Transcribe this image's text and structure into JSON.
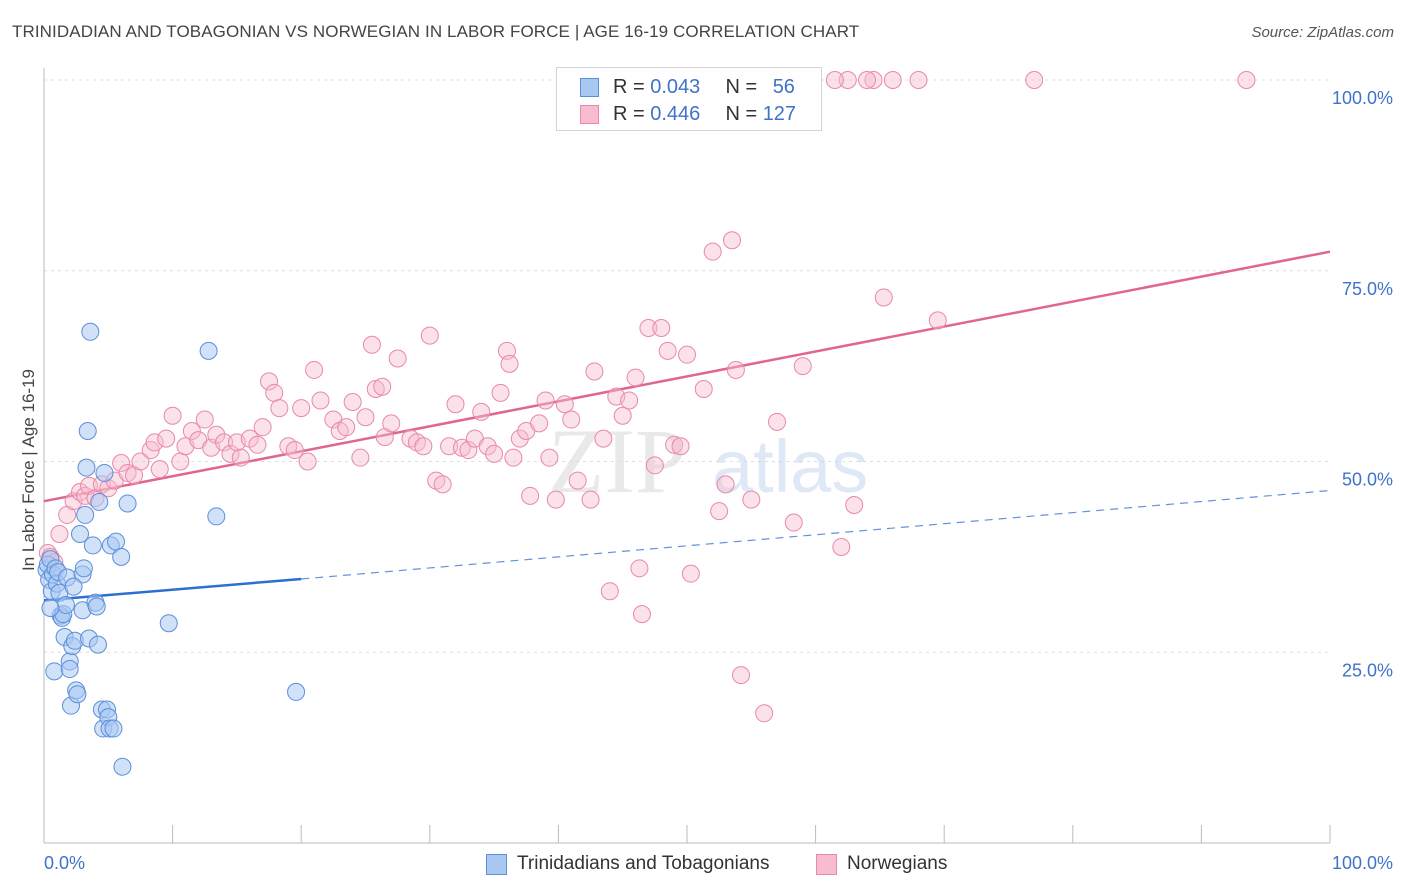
{
  "title": "TRINIDADIAN AND TOBAGONIAN VS NORWEGIAN IN LABOR FORCE | AGE 16-19 CORRELATION CHART",
  "source": "Source: ZipAtlas.com",
  "watermark": {
    "zip": "ZIP",
    "atlas": "atlas"
  },
  "colors": {
    "blue_fill": "#a9c8f2",
    "blue_stroke": "#5b8fdb",
    "blue_line": "#2d6fd0",
    "pink_fill": "#f7bcd0",
    "pink_stroke": "#e889a8",
    "pink_line": "#e0668f",
    "axis_text_blue": "#3f72c9",
    "grid": "#dddddd"
  },
  "legend": {
    "rows": [
      {
        "r_label": "R = ",
        "r_value": "0.043",
        "n_label": "N = ",
        "n_value": "56"
      },
      {
        "r_label": "R = ",
        "r_value": "0.446",
        "n_label": "N = ",
        "n_value": "127"
      }
    ]
  },
  "bottom_legend": {
    "series1": "Trinidadians and Tobagonians",
    "series2": "Norwegians"
  },
  "chart_data": {
    "type": "scatter",
    "title": "TRINIDADIAN AND TOBAGONIAN VS NORWEGIAN IN LABOR FORCE | AGE 16-19 CORRELATION CHART",
    "xlabel": "",
    "ylabel": "In Labor Force | Age 16-19",
    "xlim": [
      0,
      100
    ],
    "ylim": [
      0,
      100
    ],
    "x_tick_labels": [
      "0.0%",
      "100.0%"
    ],
    "y_tick_labels": [
      "25.0%",
      "50.0%",
      "75.0%",
      "100.0%"
    ],
    "y_ticks": [
      25,
      50,
      75,
      100
    ],
    "grid": true,
    "legend_position": "top-center",
    "series": [
      {
        "name": "Trinidadians and Tobagonians",
        "R": 0.043,
        "N": 56,
        "trend": {
          "x": [
            0,
            20
          ],
          "y": [
            31.8,
            34.6
          ],
          "dashed_to": [
            100,
            46.2
          ]
        },
        "points": [
          [
            0.2,
            35.8
          ],
          [
            0.3,
            36.5
          ],
          [
            0.4,
            34.5
          ],
          [
            0.5,
            37.2
          ],
          [
            0.6,
            33.0
          ],
          [
            0.7,
            35.2
          ],
          [
            0.8,
            22.5
          ],
          [
            0.9,
            36.0
          ],
          [
            1.0,
            34.0
          ],
          [
            1.1,
            35.5
          ],
          [
            1.2,
            32.8
          ],
          [
            1.3,
            29.8
          ],
          [
            1.4,
            29.5
          ],
          [
            1.5,
            30.0
          ],
          [
            1.6,
            27.0
          ],
          [
            1.8,
            34.8
          ],
          [
            2.0,
            23.8
          ],
          [
            2.0,
            22.8
          ],
          [
            2.1,
            18.0
          ],
          [
            2.2,
            25.8
          ],
          [
            2.4,
            26.5
          ],
          [
            2.5,
            20.0
          ],
          [
            2.6,
            19.5
          ],
          [
            2.8,
            40.5
          ],
          [
            3.0,
            30.5
          ],
          [
            3.0,
            35.2
          ],
          [
            3.1,
            36.0
          ],
          [
            3.2,
            43.0
          ],
          [
            3.3,
            49.2
          ],
          [
            3.4,
            54.0
          ],
          [
            3.5,
            26.8
          ],
          [
            3.6,
            67.0
          ],
          [
            3.8,
            39.0
          ],
          [
            4.0,
            31.5
          ],
          [
            4.1,
            31.0
          ],
          [
            4.2,
            26.0
          ],
          [
            4.3,
            44.7
          ],
          [
            4.5,
            17.5
          ],
          [
            4.6,
            15.0
          ],
          [
            4.7,
            48.5
          ],
          [
            4.9,
            17.5
          ],
          [
            5.0,
            16.5
          ],
          [
            5.1,
            15.0
          ],
          [
            5.2,
            39.0
          ],
          [
            5.4,
            15.0
          ],
          [
            5.6,
            39.5
          ],
          [
            6.0,
            37.5
          ],
          [
            6.1,
            10.0
          ],
          [
            6.5,
            44.5
          ],
          [
            9.7,
            28.8
          ],
          [
            12.8,
            64.5
          ],
          [
            13.4,
            42.8
          ],
          [
            19.6,
            19.8
          ],
          [
            1.7,
            31.2
          ],
          [
            2.3,
            33.6
          ],
          [
            0.5,
            30.8
          ]
        ]
      },
      {
        "name": "Norwegians",
        "R": 0.446,
        "N": 127,
        "trend": {
          "x": [
            0,
            100
          ],
          "y": [
            44.8,
            77.5
          ]
        },
        "points": [
          [
            0.3,
            38.0
          ],
          [
            0.5,
            37.5
          ],
          [
            0.8,
            36.8
          ],
          [
            1.2,
            40.5
          ],
          [
            1.8,
            43.0
          ],
          [
            2.3,
            44.8
          ],
          [
            2.8,
            46.0
          ],
          [
            3.2,
            45.5
          ],
          [
            3.5,
            46.8
          ],
          [
            4.0,
            45.2
          ],
          [
            4.5,
            47.0
          ],
          [
            5.0,
            46.5
          ],
          [
            5.5,
            47.5
          ],
          [
            6.0,
            49.8
          ],
          [
            6.5,
            48.5
          ],
          [
            7.0,
            48.2
          ],
          [
            7.5,
            50.0
          ],
          [
            8.3,
            51.5
          ],
          [
            8.6,
            52.5
          ],
          [
            9.0,
            49.0
          ],
          [
            9.5,
            53.0
          ],
          [
            10.0,
            56.0
          ],
          [
            10.6,
            50.0
          ],
          [
            11.0,
            52.0
          ],
          [
            11.5,
            54.0
          ],
          [
            12.0,
            52.8
          ],
          [
            12.5,
            55.5
          ],
          [
            13.0,
            51.8
          ],
          [
            13.4,
            53.5
          ],
          [
            14.0,
            52.5
          ],
          [
            14.5,
            51.0
          ],
          [
            15.0,
            52.5
          ],
          [
            15.3,
            50.5
          ],
          [
            16.0,
            53.0
          ],
          [
            16.6,
            52.2
          ],
          [
            17.0,
            54.5
          ],
          [
            17.5,
            60.5
          ],
          [
            17.9,
            59.0
          ],
          [
            18.3,
            57.0
          ],
          [
            19.0,
            52.0
          ],
          [
            19.5,
            51.5
          ],
          [
            20.0,
            57.0
          ],
          [
            20.5,
            50.0
          ],
          [
            21.0,
            62.0
          ],
          [
            21.5,
            58.0
          ],
          [
            22.5,
            55.5
          ],
          [
            23.0,
            54.0
          ],
          [
            23.5,
            54.5
          ],
          [
            24.0,
            57.8
          ],
          [
            24.6,
            50.5
          ],
          [
            25.0,
            55.8
          ],
          [
            25.5,
            65.3
          ],
          [
            25.8,
            59.5
          ],
          [
            26.3,
            59.8
          ],
          [
            26.5,
            53.2
          ],
          [
            27.0,
            55.0
          ],
          [
            27.5,
            63.5
          ],
          [
            28.5,
            53.0
          ],
          [
            29.0,
            52.5
          ],
          [
            29.5,
            52.0
          ],
          [
            30.0,
            66.5
          ],
          [
            30.5,
            47.5
          ],
          [
            31.0,
            47.0
          ],
          [
            31.5,
            52.0
          ],
          [
            32.0,
            57.5
          ],
          [
            32.5,
            51.8
          ],
          [
            33.0,
            51.5
          ],
          [
            33.5,
            53.0
          ],
          [
            34.0,
            56.5
          ],
          [
            34.5,
            52.0
          ],
          [
            35.0,
            51.0
          ],
          [
            35.5,
            59.0
          ],
          [
            36.0,
            64.5
          ],
          [
            36.2,
            62.8
          ],
          [
            36.5,
            50.5
          ],
          [
            37.0,
            53.0
          ],
          [
            37.5,
            54.0
          ],
          [
            37.8,
            45.5
          ],
          [
            38.5,
            55.0
          ],
          [
            39.0,
            58.0
          ],
          [
            39.3,
            50.5
          ],
          [
            39.8,
            45.0
          ],
          [
            40.5,
            57.5
          ],
          [
            41.0,
            55.5
          ],
          [
            41.5,
            47.5
          ],
          [
            42.5,
            45.0
          ],
          [
            42.8,
            61.8
          ],
          [
            43.5,
            53.0
          ],
          [
            44.0,
            33.0
          ],
          [
            44.5,
            58.5
          ],
          [
            45.0,
            56.0
          ],
          [
            45.5,
            58.0
          ],
          [
            46.0,
            61.0
          ],
          [
            46.3,
            36.0
          ],
          [
            46.5,
            30.0
          ],
          [
            47.0,
            67.5
          ],
          [
            47.5,
            49.5
          ],
          [
            48.0,
            67.5
          ],
          [
            48.5,
            64.5
          ],
          [
            49.0,
            52.2
          ],
          [
            49.5,
            52.0
          ],
          [
            50.0,
            64.0
          ],
          [
            50.3,
            35.3
          ],
          [
            51.3,
            59.5
          ],
          [
            52.0,
            77.5
          ],
          [
            52.5,
            43.5
          ],
          [
            53.0,
            47.0
          ],
          [
            53.5,
            79.0
          ],
          [
            53.8,
            62.0
          ],
          [
            54.2,
            22.0
          ],
          [
            55.0,
            45.0
          ],
          [
            56.0,
            17.0
          ],
          [
            57.0,
            55.2
          ],
          [
            58.3,
            42.0
          ],
          [
            59.0,
            62.5
          ],
          [
            62.0,
            38.8
          ],
          [
            63.0,
            44.3
          ],
          [
            65.3,
            71.5
          ],
          [
            69.5,
            68.5
          ],
          [
            62.5,
            100.0
          ],
          [
            61.5,
            100.0
          ],
          [
            64.5,
            100.0
          ],
          [
            66.0,
            100.0
          ],
          [
            68.0,
            100.0
          ],
          [
            77.0,
            100.0
          ],
          [
            93.5,
            100.0
          ],
          [
            64.0,
            100.0
          ]
        ]
      }
    ]
  }
}
